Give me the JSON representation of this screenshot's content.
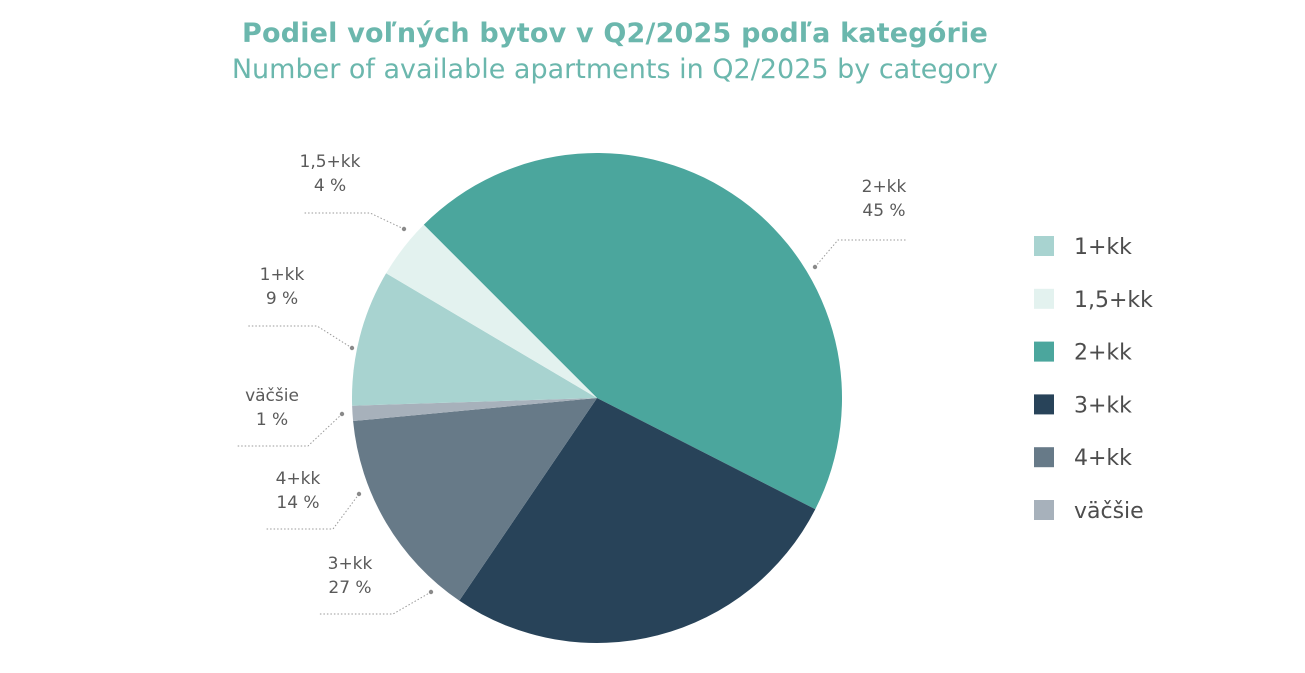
{
  "title": "Podiel voľných bytov v Q2/2025 podľa kategórie",
  "subtitle": "Number of available apartments in Q2/2025 by category",
  "chart_data": {
    "type": "pie",
    "start_angle_deg": -45,
    "slices": [
      {
        "label": "2+kk",
        "value_label": "45 %",
        "value": 45,
        "color": "#4ba69d"
      },
      {
        "label": "3+kk",
        "value_label": "27 %",
        "value": 27,
        "color": "#284359"
      },
      {
        "label": "4+kk",
        "value_label": "14 %",
        "value": 14,
        "color": "#677a88"
      },
      {
        "label": "väčšie",
        "value_label": "1 %",
        "value": 1,
        "color": "#a7b1bb"
      },
      {
        "label": "1+kk",
        "value_label": "9 %",
        "value": 9,
        "color": "#a8d3d0"
      },
      {
        "label": "1,5+kk",
        "value_label": "4 %",
        "value": 4,
        "color": "#e3f2ef"
      }
    ],
    "legend": {
      "position": "right",
      "items": [
        {
          "label": "1+kk",
          "color": "#a8d3d0"
        },
        {
          "label": "1,5+kk",
          "color": "#e3f2ef"
        },
        {
          "label": "2+kk",
          "color": "#4ba69d"
        },
        {
          "label": "3+kk",
          "color": "#284359"
        },
        {
          "label": "4+kk",
          "color": "#677a88"
        },
        {
          "label": "väčšie",
          "color": "#a7b1bb"
        }
      ]
    }
  }
}
